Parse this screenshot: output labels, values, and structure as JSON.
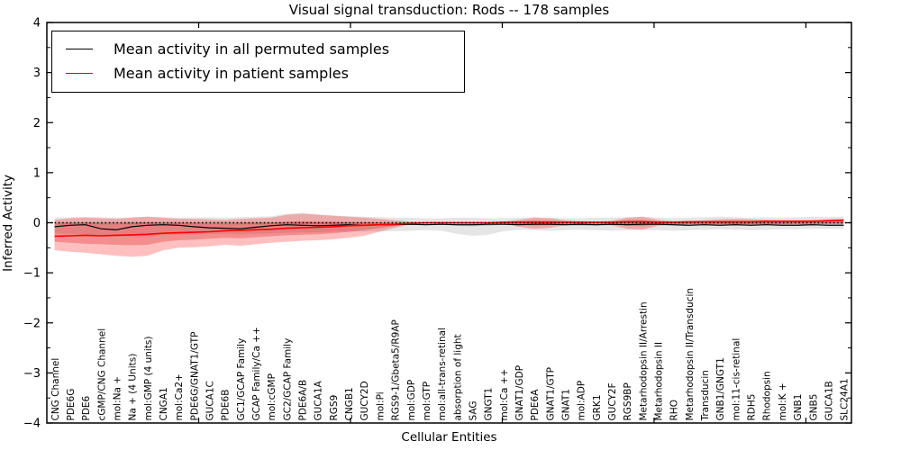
{
  "figure": {
    "title": "Visual signal transduction: Rods -- 178 samples",
    "xlabel": "Cellular Entities",
    "ylabel": "Inferred Activity"
  },
  "legend": {
    "items": [
      {
        "label": "Mean activity in all permuted samples",
        "color": "#000000"
      },
      {
        "label": "Mean activity in patient samples",
        "color": "#ff0000"
      }
    ]
  },
  "chart_data": {
    "type": "line",
    "title": "Visual signal transduction: Rods -- 178 samples",
    "xlabel": "Cellular Entities",
    "ylabel": "Inferred Activity",
    "ylim": [
      -4,
      4
    ],
    "yticks": [
      -4,
      -3,
      -2,
      -1,
      0,
      1,
      2,
      3,
      4
    ],
    "y_minor_tick_step": 0.5,
    "xlim": [
      0,
      53
    ],
    "xticks": [
      10,
      20,
      30,
      40,
      50
    ],
    "grid": false,
    "legend_position": "upper left",
    "zero_line": {
      "y": 0,
      "style": "dotted",
      "color": "#000000"
    },
    "categories": [
      "CNG Channel",
      "PDE6G",
      "PDE6",
      "cGMP/CNG Channel",
      "mol:Na +",
      "Na + (4 Units)",
      "mol:GMP (4 units)",
      "CNGA1",
      "mol:Ca2+",
      "PDE6G/GNAT1/GTP",
      "GUCA1C",
      "PDE6B",
      "GC1/GCAP Family",
      "GCAP Family/Ca ++",
      "mol:cGMP",
      "GC2/GCAP Family",
      "PDE6A/B",
      "GUCA1A",
      "RGS9",
      "CNGB1",
      "GUCY2D",
      "mol:Pi",
      "RGS9-1/Gbeta5/R9AP",
      "mol:GDP",
      "mol:GTP",
      "mol:all-trans-retinal",
      "absorption of light",
      "SAG",
      "GNGT1",
      "mol:Ca ++",
      "GNAT1/GDP",
      "PDE6A",
      "GNAT1/GTP",
      "GNAT1",
      "mol:ADP",
      "GRK1",
      "GUCY2F",
      "RGS9BP",
      "Metarhodopsin II/Arrestin",
      "Metarhodopsin II",
      "RHO",
      "Metarhodopsin II/Transducin",
      "Transducin",
      "GNB1/GNGT1",
      "mol:11-cis-retinal",
      "RDH5",
      "Rhodopsin",
      "mol:K +",
      "GNB1",
      "GNB5",
      "GUCA1B",
      "SLC24A1"
    ],
    "series": [
      {
        "name": "Mean activity in all permuted samples",
        "color": "#000000",
        "width": 1.2,
        "values": [
          -0.08,
          -0.05,
          -0.04,
          -0.12,
          -0.14,
          -0.08,
          -0.05,
          -0.04,
          -0.05,
          -0.08,
          -0.1,
          -0.11,
          -0.12,
          -0.09,
          -0.06,
          -0.04,
          -0.05,
          -0.06,
          -0.05,
          -0.04,
          -0.05,
          -0.04,
          -0.04,
          -0.03,
          -0.04,
          -0.03,
          -0.04,
          -0.04,
          -0.03,
          -0.03,
          -0.04,
          -0.03,
          -0.03,
          -0.04,
          -0.03,
          -0.04,
          -0.03,
          -0.04,
          -0.03,
          -0.03,
          -0.04,
          -0.05,
          -0.04,
          -0.05,
          -0.04,
          -0.05,
          -0.04,
          -0.05,
          -0.05,
          -0.04,
          -0.05,
          -0.05
        ]
      },
      {
        "name": "Mean activity in patient samples",
        "color": "#ff0000",
        "width": 1.6,
        "values": [
          -0.27,
          -0.26,
          -0.25,
          -0.26,
          -0.25,
          -0.24,
          -0.23,
          -0.21,
          -0.2,
          -0.19,
          -0.18,
          -0.16,
          -0.15,
          -0.14,
          -0.13,
          -0.11,
          -0.1,
          -0.09,
          -0.08,
          -0.06,
          -0.05,
          -0.04,
          -0.03,
          -0.01,
          0.0,
          0.0,
          0.0,
          0.0,
          0.0,
          0.01,
          0.01,
          0.01,
          0.01,
          0.01,
          0.01,
          0.01,
          0.01,
          0.02,
          0.02,
          0.01,
          0.01,
          0.02,
          0.02,
          0.02,
          0.02,
          0.02,
          0.03,
          0.03,
          0.03,
          0.03,
          0.04,
          0.05
        ]
      }
    ],
    "bands": [
      {
        "name": "permuted-range-outer",
        "fill": "rgba(0,0,0,0.10)",
        "upper": [
          0.1,
          0.11,
          0.12,
          0.11,
          0.1,
          0.11,
          0.12,
          0.11,
          0.1,
          0.1,
          0.11,
          0.1,
          0.11,
          0.12,
          0.13,
          0.18,
          0.2,
          0.17,
          0.15,
          0.13,
          0.12,
          0.11,
          0.1,
          0.1,
          0.09,
          0.09,
          0.1,
          0.1,
          0.09,
          0.09,
          0.1,
          0.11,
          0.1,
          0.09,
          0.09,
          0.1,
          0.1,
          0.11,
          0.12,
          0.1,
          0.09,
          0.1,
          0.11,
          0.12,
          0.11,
          0.1,
          0.11,
          0.1,
          0.11,
          0.12,
          0.11,
          0.12
        ],
        "lower": [
          -0.2,
          -0.22,
          -0.24,
          -0.26,
          -0.27,
          -0.28,
          -0.27,
          -0.25,
          -0.24,
          -0.23,
          -0.22,
          -0.22,
          -0.23,
          -0.22,
          -0.21,
          -0.2,
          -0.19,
          -0.19,
          -0.18,
          -0.18,
          -0.18,
          -0.17,
          -0.17,
          -0.16,
          -0.15,
          -0.16,
          -0.22,
          -0.26,
          -0.24,
          -0.17,
          -0.14,
          -0.15,
          -0.16,
          -0.15,
          -0.14,
          -0.15,
          -0.16,
          -0.15,
          -0.14,
          -0.15,
          -0.16,
          -0.15,
          -0.14,
          -0.13,
          -0.14,
          -0.15,
          -0.14,
          -0.13,
          -0.13,
          -0.12,
          -0.12,
          -0.12
        ]
      },
      {
        "name": "permuted-range-inner",
        "fill": "rgba(0,0,0,0.18)",
        "upper": [
          0.01,
          0.01,
          0.01,
          0.01,
          0.01,
          0.01,
          0.01,
          0.01,
          0.01,
          0.01,
          0.01,
          0.01,
          0.01,
          0.01,
          0.01,
          0.01,
          0.01,
          0.01,
          0.01,
          0.01,
          0.01,
          0.01,
          0.01,
          0.01,
          0.01,
          0.01,
          0.01,
          0.01,
          0.01,
          0.01,
          0.01,
          0.01,
          0.01,
          0.01,
          0.01,
          0.01,
          0.01,
          0.01,
          0.01,
          0.01,
          0.01,
          0.01,
          0.01,
          0.01,
          0.01,
          0.01,
          0.01,
          0.01,
          0.01,
          0.01,
          0.01,
          0.01
        ],
        "lower": [
          -0.03,
          -0.03,
          -0.03,
          -0.03,
          -0.03,
          -0.03,
          -0.03,
          -0.03,
          -0.03,
          -0.03,
          -0.03,
          -0.03,
          -0.03,
          -0.03,
          -0.03,
          -0.03,
          -0.03,
          -0.03,
          -0.03,
          -0.03,
          -0.03,
          -0.03,
          -0.03,
          -0.03,
          -0.03,
          -0.04,
          -0.06,
          -0.07,
          -0.06,
          -0.04,
          -0.03,
          -0.03,
          -0.04,
          -0.05,
          -0.06,
          -0.06,
          -0.05,
          -0.04,
          -0.04,
          -0.05,
          -0.06,
          -0.06,
          -0.05,
          -0.04,
          -0.05,
          -0.05,
          -0.04,
          -0.05,
          -0.06,
          -0.06,
          -0.05,
          -0.05
        ]
      },
      {
        "name": "patient-range-outer",
        "fill": "rgba(255,0,0,0.25)",
        "upper": [
          0.06,
          0.09,
          0.1,
          0.09,
          0.08,
          0.1,
          0.12,
          0.1,
          0.08,
          0.08,
          0.07,
          0.06,
          0.08,
          0.09,
          0.1,
          0.16,
          0.18,
          0.16,
          0.14,
          0.12,
          0.1,
          0.08,
          0.05,
          0.02,
          0.01,
          0.01,
          0.01,
          0.01,
          0.01,
          0.02,
          0.06,
          0.1,
          0.09,
          0.05,
          0.03,
          0.02,
          0.04,
          0.1,
          0.12,
          0.06,
          0.03,
          0.03,
          0.05,
          0.07,
          0.08,
          0.07,
          0.06,
          0.05,
          0.05,
          0.06,
          0.07,
          0.08
        ],
        "lower": [
          -0.55,
          -0.58,
          -0.6,
          -0.63,
          -0.66,
          -0.68,
          -0.66,
          -0.55,
          -0.5,
          -0.49,
          -0.47,
          -0.44,
          -0.46,
          -0.43,
          -0.4,
          -0.38,
          -0.36,
          -0.35,
          -0.33,
          -0.3,
          -0.26,
          -0.18,
          -0.1,
          -0.03,
          -0.01,
          -0.01,
          -0.01,
          -0.01,
          -0.01,
          -0.02,
          -0.08,
          -0.12,
          -0.1,
          -0.05,
          -0.03,
          -0.02,
          -0.05,
          -0.12,
          -0.14,
          -0.06,
          -0.03,
          -0.03,
          -0.04,
          -0.05,
          -0.06,
          -0.05,
          -0.04,
          -0.04,
          -0.03,
          -0.03,
          -0.02,
          -0.02
        ]
      },
      {
        "name": "patient-range-inner",
        "fill": "rgba(220,30,30,0.30)",
        "upper": [
          -0.02,
          -0.01,
          0.0,
          -0.01,
          -0.02,
          0.0,
          0.01,
          0.0,
          -0.01,
          -0.01,
          -0.02,
          -0.02,
          -0.01,
          0.0,
          0.0,
          0.02,
          0.03,
          0.02,
          0.02,
          0.01,
          0.01,
          0.0,
          -0.01,
          0.0,
          0.01,
          0.01,
          0.01,
          0.01,
          0.01,
          0.01,
          0.03,
          0.05,
          0.04,
          0.02,
          0.02,
          0.01,
          0.02,
          0.05,
          0.06,
          0.03,
          0.02,
          0.02,
          0.02,
          0.03,
          0.04,
          0.03,
          0.03,
          0.02,
          0.02,
          0.03,
          0.04,
          0.05
        ],
        "lower": [
          -0.38,
          -0.4,
          -0.42,
          -0.43,
          -0.44,
          -0.45,
          -0.44,
          -0.38,
          -0.35,
          -0.34,
          -0.32,
          -0.3,
          -0.31,
          -0.29,
          -0.27,
          -0.25,
          -0.24,
          -0.23,
          -0.21,
          -0.18,
          -0.15,
          -0.11,
          -0.06,
          -0.02,
          -0.01,
          -0.01,
          -0.01,
          -0.01,
          -0.01,
          -0.01,
          -0.04,
          -0.06,
          -0.05,
          -0.02,
          -0.02,
          -0.01,
          -0.02,
          -0.06,
          -0.07,
          -0.03,
          -0.02,
          -0.02,
          -0.02,
          -0.02,
          -0.03,
          -0.02,
          -0.02,
          -0.02,
          -0.01,
          -0.01,
          -0.01,
          -0.01
        ]
      }
    ]
  }
}
